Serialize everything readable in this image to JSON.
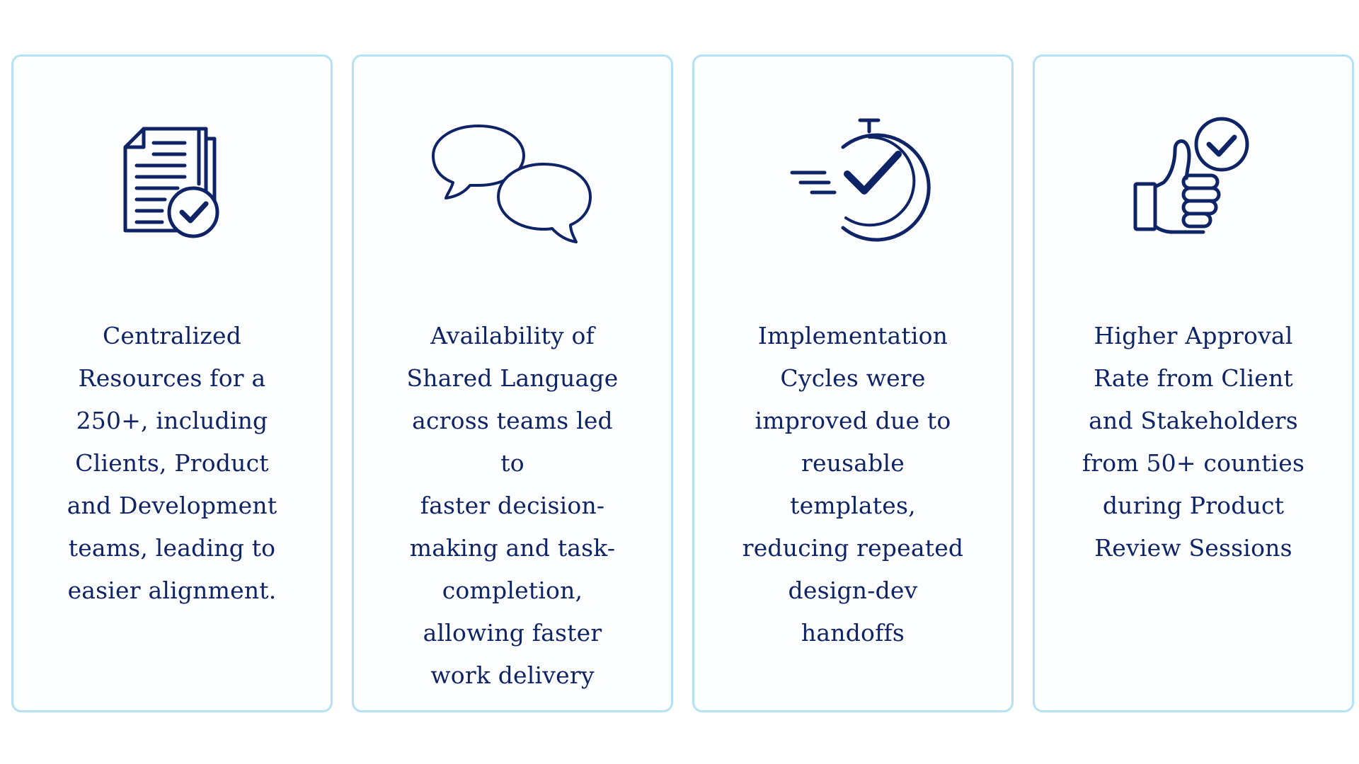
{
  "theme": {
    "border_color": "#b5e1f6",
    "text_color": "#0e2466",
    "icon_color": "#0e2466"
  },
  "cards": [
    {
      "icon": "documents-check-icon",
      "text": "Centralized\nResources for a\n250+, including\nClients, Product\nand Development\nteams, leading to\neasier alignment."
    },
    {
      "icon": "chat-bubbles-icon",
      "text": "Availability of\nShared Language\nacross teams led to\nfaster decision-\nmaking and task-\ncompletion,\nallowing faster\nwork delivery"
    },
    {
      "icon": "stopwatch-check-icon",
      "text": "Implementation\nCycles were\nimproved due to\nreusable\ntemplates,\nreducing repeated\ndesign-dev\nhandoffs"
    },
    {
      "icon": "thumbs-up-check-icon",
      "text": "Higher Approval\nRate from Client\nand Stakeholders\nfrom 50+ counties\nduring Product\nReview Sessions"
    }
  ]
}
